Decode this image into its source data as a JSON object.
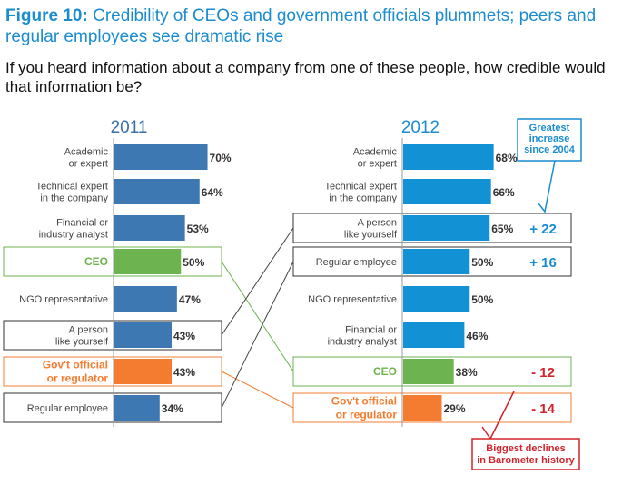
{
  "header": {
    "title_lead": "Figure 10:",
    "title_rest": "Credibility of CEOs and government officials plummets; peers and regular employees see dramatic rise",
    "question": "If you heard information about a company from one of these people, how credible would that information be?"
  },
  "colors": {
    "title_blue": "#1a8ccf",
    "bar_2011": "#3e78b2",
    "bar_2012": "#1291d5",
    "ceo_green": "#6db34f",
    "gov_orange": "#f47c30",
    "decline_red": "#d2232a",
    "increase_blue": "#1a8ccf"
  },
  "callouts": {
    "greatest_increase": [
      "Greatest",
      "increase",
      "since 2004"
    ],
    "biggest_declines": [
      "Biggest declines",
      "in Barometer history"
    ]
  },
  "chart_data": [
    {
      "type": "bar",
      "orientation": "horizontal",
      "year_label": "2011",
      "categories": [
        [
          "Academic",
          "or expert"
        ],
        [
          "Technical expert",
          "in the company"
        ],
        [
          "Financial or",
          "industry analyst"
        ],
        [
          "CEO"
        ],
        [
          "NGO representative"
        ],
        [
          "A person",
          "like yourself"
        ],
        [
          "Gov't official",
          "or regulator"
        ],
        [
          "Regular employee"
        ]
      ],
      "values": [
        70,
        64,
        53,
        50,
        47,
        43,
        43,
        34
      ],
      "value_labels": [
        "70%",
        "64%",
        "53%",
        "50%",
        "47%",
        "43%",
        "43%",
        "34%"
      ]
    },
    {
      "type": "bar",
      "orientation": "horizontal",
      "year_label": "2012",
      "categories": [
        [
          "Academic",
          "or expert"
        ],
        [
          "Technical expert",
          "in the company"
        ],
        [
          "A person",
          "like yourself"
        ],
        [
          "Regular employee"
        ],
        [
          "NGO representative"
        ],
        [
          "Financial or",
          "industry analyst"
        ],
        [
          "CEO"
        ],
        [
          "Gov't official",
          "or regulator"
        ]
      ],
      "values": [
        68,
        66,
        65,
        50,
        50,
        46,
        38,
        29
      ],
      "value_labels": [
        "68%",
        "66%",
        "65%",
        "50%",
        "50%",
        "46%",
        "38%",
        "29%"
      ],
      "changes": [
        "",
        "",
        "+ 22",
        "+ 16",
        "",
        "",
        "- 12",
        "- 14"
      ]
    }
  ]
}
